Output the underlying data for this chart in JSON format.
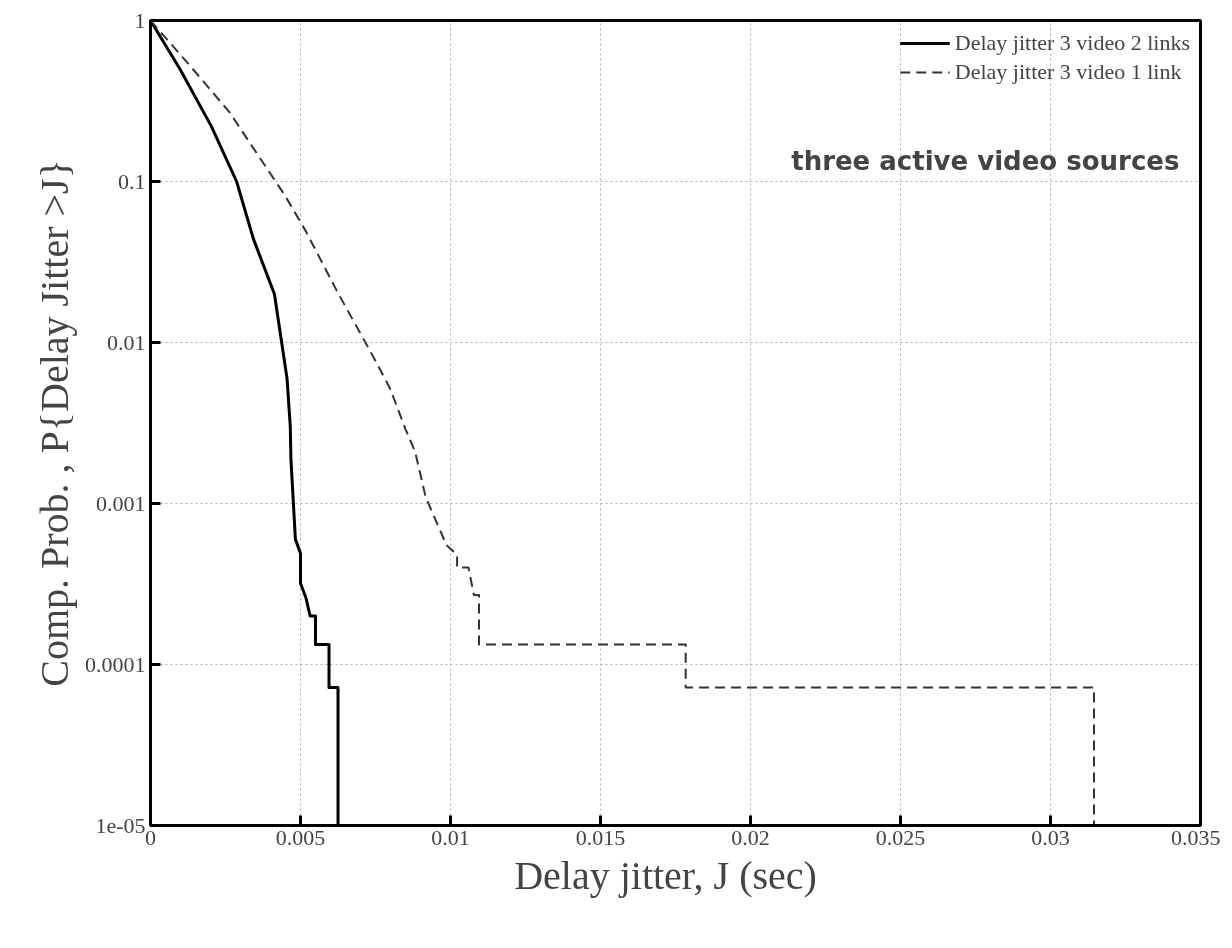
{
  "chart_data": {
    "type": "line",
    "xlabel": "Delay jitter,  J  (sec)",
    "ylabel": "Comp. Prob. , P{Delay Jitter >J}",
    "log": "y",
    "grid": true,
    "legend": "top right",
    "xlim": [
      0,
      0.035
    ],
    "ylim": [
      1e-05,
      1
    ],
    "xticks": [
      0,
      0.005,
      0.01,
      0.015,
      0.02,
      0.025,
      0.03,
      0.035
    ],
    "yticks": [
      {
        "value": 1e-05,
        "label": "1e-05"
      },
      0.0001,
      0.001,
      0.01,
      0.1,
      1
    ],
    "annotations": [
      "three  active video sources"
    ],
    "series": [
      {
        "name": "Delay jitter 3 video 2 links",
        "color": "#000000",
        "line_style": "solid",
        "x": [
          0,
          0.00098,
          0.00203,
          0.00287,
          0.00343,
          0.00413,
          0.00438,
          0.00455,
          0.00466,
          0.00468,
          0.00483,
          0.005,
          0.005,
          0.00518,
          0.00532,
          0.0055,
          0.0055,
          0.00595,
          0.00595,
          0.00625,
          0.00625
        ],
        "values": [
          1,
          0.5,
          0.22,
          0.1,
          0.044,
          0.02,
          0.0098,
          0.006,
          0.003,
          0.0019,
          0.0006,
          0.00049,
          0.00032,
          0.00026,
          0.0002,
          0.0002,
          0.000133,
          0.000133,
          7.2e-05,
          7.2e-05,
          1e-05
        ]
      },
      {
        "name": "Delay jitter 3 video 1 link",
        "color": "#333333",
        "line_style": "dashed",
        "x": [
          0,
          0.00133,
          0.00263,
          0.00368,
          0.00448,
          0.00518,
          0.00623,
          0.00742,
          0.00798,
          0.0085,
          0.00882,
          0.00917,
          0.00987,
          0.01022,
          0.01022,
          0.0106,
          0.01078,
          0.01095,
          0.01095,
          0.01784,
          0.01784,
          0.03145,
          0.03145
        ],
        "values": [
          1,
          0.52,
          0.27,
          0.137,
          0.082,
          0.049,
          0.0206,
          0.0082,
          0.0052,
          0.0029,
          0.0021,
          0.0011,
          0.00055,
          0.00048,
          0.0004,
          0.0004,
          0.00027,
          0.00027,
          0.000133,
          0.000133,
          7.2e-05,
          7.2e-05,
          1e-05
        ]
      }
    ]
  }
}
